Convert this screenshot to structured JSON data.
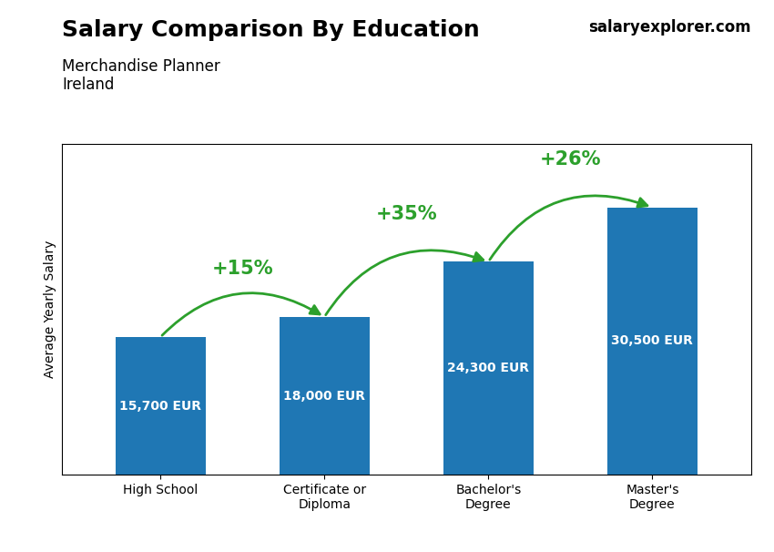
{
  "chart_data": {
    "type": "bar",
    "title": "Salary Comparison By Education",
    "subtitle": "Merchandise Planner\nIreland",
    "y_label": "Average Yearly Salary",
    "categories": [
      "High School",
      "Certificate or\nDiploma",
      "Bachelor's\nDegree",
      "Master's\nDegree"
    ],
    "values": [
      15700,
      18000,
      24300,
      30500
    ],
    "value_labels": [
      "15,700 EUR",
      "18,000 EUR",
      "24,300 EUR",
      "30,500 EUR"
    ],
    "data_labels": true,
    "change_labels": [
      "+15%",
      "+35%",
      "+26%"
    ],
    "annotations": [
      "salaryexplorer.com"
    ],
    "ylim": [
      0,
      37800
    ],
    "tick_labels": "x",
    "grid": false
  }
}
